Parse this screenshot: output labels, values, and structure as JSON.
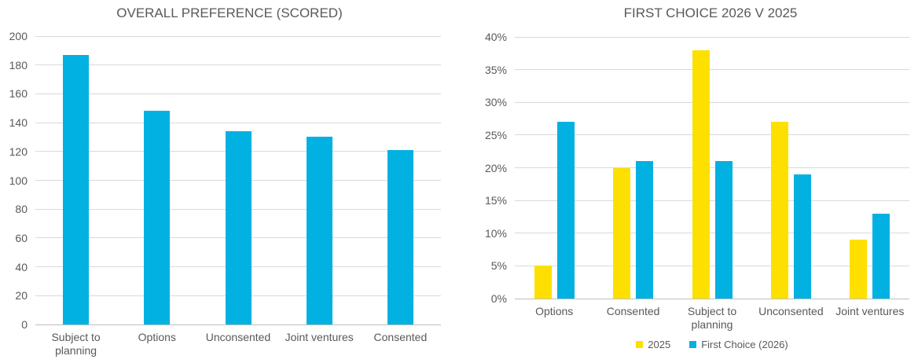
{
  "colors": {
    "blue": "#00b1e1",
    "yellow": "#fde000",
    "grid": "#d9d9d9",
    "axis": "#bfbfbf",
    "text": "#595959"
  },
  "chart_data": [
    {
      "type": "bar",
      "title": "OVERALL PREFERENCE (SCORED)",
      "categories": [
        "Subject to planning",
        "Options",
        "Unconsented",
        "Joint ventures",
        "Consented"
      ],
      "series": [
        {
          "name": "Score",
          "color": "blue",
          "values": [
            187,
            148,
            134,
            130,
            121
          ]
        }
      ],
      "xlabel": "",
      "ylabel": "",
      "ylim": [
        0,
        200
      ],
      "ytick_step": 20,
      "ytick_suffix": "",
      "grid": true,
      "legend": false
    },
    {
      "type": "bar",
      "title": "FIRST CHOICE 2026 V 2025",
      "categories": [
        "Options",
        "Consented",
        "Subject to planning",
        "Unconsented",
        "Joint ventures"
      ],
      "series": [
        {
          "name": "2025",
          "color": "yellow",
          "values": [
            5,
            20,
            38,
            27,
            9
          ]
        },
        {
          "name": "First Choice (2026)",
          "color": "blue",
          "values": [
            27,
            21,
            21,
            19,
            13
          ]
        }
      ],
      "xlabel": "",
      "ylabel": "",
      "ylim": [
        0,
        40
      ],
      "ytick_step": 5,
      "ytick_suffix": "%",
      "grid": true,
      "legend": true,
      "legend_position": "bottom"
    }
  ]
}
